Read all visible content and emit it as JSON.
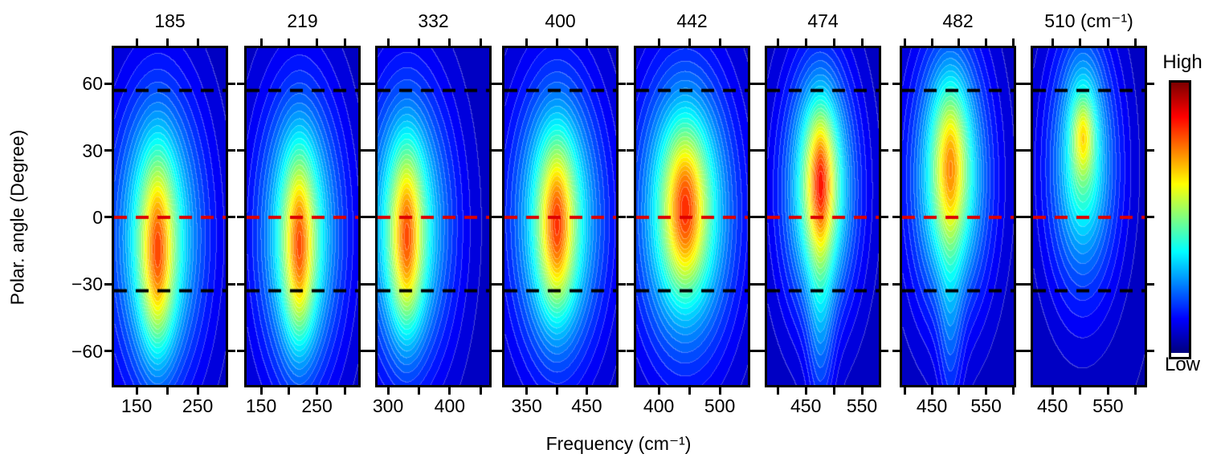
{
  "figure": {
    "background": "#ffffff",
    "text_color": "#000000"
  },
  "chart_data": {
    "type": "heatmap",
    "subtype": "filled_contour_panel_series",
    "description": "Eight filled-contour panels of scattering intensity vs frequency and polar angle, one per phonon mode, with a shared jet colorbar.",
    "xlabel": "Frequency (cm⁻¹)",
    "ylabel": "Polar. angle (Degree)",
    "ylim": [
      -75.3,
      76
    ],
    "yticks": [
      {
        "value": 60,
        "label": "60"
      },
      {
        "value": 30,
        "label": "30"
      },
      {
        "value": 0,
        "label": "0"
      },
      {
        "value": -30,
        "label": "−30"
      },
      {
        "value": -60,
        "label": "−60"
      }
    ],
    "reference_lines": [
      {
        "name": "upper-black-dashed",
        "angle_deg": 57,
        "color": "#000000",
        "style": "dashed"
      },
      {
        "name": "zero-red-dashed",
        "angle_deg": 0,
        "color": "#dd0000",
        "style": "dashed"
      },
      {
        "name": "lower-black-dashed",
        "angle_deg": -33,
        "color": "#000000",
        "style": "dashed"
      }
    ],
    "colorbar": {
      "label_high": "High",
      "label_low": "Low",
      "colormap": "jet"
    },
    "intensity_scale": {
      "min": 0,
      "max": 1
    },
    "panels": [
      {
        "title": "185",
        "mode_cm1": 185,
        "xlim": [
          113,
          296
        ],
        "xticks": [
          150,
          200,
          250
        ],
        "xtick_labels": [
          {
            "value": 150,
            "label": "150"
          },
          {
            "value": 250,
            "label": "250"
          }
        ],
        "peak": {
          "frequency_cm1": 185,
          "polar_angle_deg": -16,
          "relative_intensity": 0.8
        },
        "field": {
          "base": 0.055,
          "blobs": [
            [
              185,
              -8,
              55,
              46,
              0.34
            ],
            [
              184,
              -15,
              24,
              33,
              0.24
            ],
            [
              184,
              -18,
              15,
              26,
              0.18
            ]
          ]
        }
      },
      {
        "title": "219",
        "mode_cm1": 219,
        "xlim": [
          124,
          324
        ],
        "xticks": [
          150,
          200,
          250,
          300
        ],
        "xtick_labels": [
          {
            "value": 150,
            "label": "150"
          },
          {
            "value": 250,
            "label": "250"
          }
        ],
        "peak": {
          "frequency_cm1": 219,
          "polar_angle_deg": -14,
          "relative_intensity": 0.78
        },
        "field": {
          "base": 0.055,
          "blobs": [
            [
              219,
              -7,
              55,
              45,
              0.34
            ],
            [
              218,
              -13,
              24,
              32,
              0.24
            ],
            [
              218,
              -15,
              15,
              25,
              0.17
            ]
          ]
        }
      },
      {
        "title": "332",
        "mode_cm1": 332,
        "xlim": [
          283,
          464
        ],
        "xticks": [
          300,
          350,
          400,
          450
        ],
        "xtick_labels": [
          {
            "value": 300,
            "label": "300"
          },
          {
            "value": 400,
            "label": "400"
          }
        ],
        "peak": {
          "frequency_cm1": 331,
          "polar_angle_deg": -10,
          "relative_intensity": 0.78
        },
        "field": {
          "base": 0.055,
          "blobs": [
            [
              331,
              -4,
              52,
              44,
              0.34
            ],
            [
              330,
              -9,
              22,
              31,
              0.24
            ],
            [
              330,
              -11,
              14,
              24,
              0.17
            ]
          ]
        }
      },
      {
        "title": "400",
        "mode_cm1": 400,
        "xlim": [
          313,
          499
        ],
        "xticks": [
          350,
          400,
          450
        ],
        "xtick_labels": [
          {
            "value": 350,
            "label": "350"
          },
          {
            "value": 450,
            "label": "450"
          }
        ],
        "peak": {
          "frequency_cm1": 400,
          "polar_angle_deg": -4,
          "relative_intensity": 0.8
        },
        "field": {
          "base": 0.055,
          "blobs": [
            [
              401,
              -1,
              55,
              44,
              0.35
            ],
            [
              400,
              -4,
              25,
              30,
              0.24
            ],
            [
              400,
              -4,
              16,
              22,
              0.18
            ]
          ]
        }
      },
      {
        "title": "442",
        "mode_cm1": 442,
        "xlim": [
          363,
          546
        ],
        "xticks": [
          400,
          450,
          500
        ],
        "xtick_labels": [
          {
            "value": 400,
            "label": "400"
          },
          {
            "value": 500,
            "label": "500"
          }
        ],
        "peak": {
          "frequency_cm1": 443,
          "polar_angle_deg": 4,
          "relative_intensity": 0.81
        },
        "field": {
          "base": 0.055,
          "blobs": [
            [
              443,
              2,
              58,
              45,
              0.36
            ],
            [
              443,
              4,
              30,
              28,
              0.24
            ],
            [
              443,
              4,
              19,
              21,
              0.18
            ]
          ]
        }
      },
      {
        "title": "474",
        "mode_cm1": 474,
        "xlim": [
          381,
          580
        ],
        "xticks": [
          400,
          450,
          500,
          550
        ],
        "xtick_labels": [
          {
            "value": 450,
            "label": "450"
          },
          {
            "value": 550,
            "label": "550"
          }
        ],
        "peak": {
          "frequency_cm1": 476,
          "polar_angle_deg": 17,
          "relative_intensity": 0.81
        },
        "field": {
          "base": 0.055,
          "blobs": [
            [
              474,
              12,
              48,
              40,
              0.34
            ],
            [
              476,
              17,
              24,
              27,
              0.25
            ],
            [
              476,
              17,
              14,
              19,
              0.19
            ],
            [
              476,
              -45,
              16,
              35,
              0.13
            ]
          ]
        }
      },
      {
        "title": "482",
        "mode_cm1": 482,
        "xlim": [
          395,
          601
        ],
        "xticks": [
          400,
          450,
          500,
          550,
          600
        ],
        "xtick_labels": [
          {
            "value": 450,
            "label": "450"
          },
          {
            "value": 550,
            "label": "550"
          }
        ],
        "peak": {
          "frequency_cm1": 484,
          "polar_angle_deg": 25,
          "relative_intensity": 0.72
        },
        "field": {
          "base": 0.055,
          "blobs": [
            [
              483,
              17,
              52,
              42,
              0.34
            ],
            [
              484,
              24,
              26,
              28,
              0.23
            ],
            [
              484,
              25,
              16,
              20,
              0.11
            ],
            [
              484,
              -50,
              15,
              35,
              0.1
            ]
          ]
        }
      },
      {
        "title": "510 (cm⁻¹)",
        "mode_cm1": 510,
        "xlim": [
          415,
          616
        ],
        "xticks": [
          450,
          500,
          550,
          600
        ],
        "xtick_labels": [
          {
            "value": 450,
            "label": "450"
          },
          {
            "value": 550,
            "label": "550"
          }
        ],
        "peak": {
          "frequency_cm1": 505,
          "polar_angle_deg": 37,
          "relative_intensity": 0.66
        },
        "field": {
          "base": 0.05,
          "blobs": [
            [
              504,
              22,
              48,
              42,
              0.28
            ],
            [
              505,
              34,
              22,
              26,
              0.18
            ],
            [
              505,
              37,
              12,
              11,
              0.17
            ]
          ]
        }
      }
    ]
  }
}
